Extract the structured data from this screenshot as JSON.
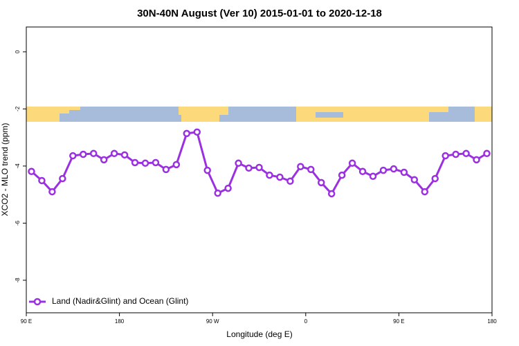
{
  "chart_data": {
    "type": "line",
    "title": "30N-40N August (Ver 10)   2015-01-01 to 2020-12-18",
    "x_label": "Longitude (deg E)",
    "y_label": "XCO2 - MLO trend (ppm)",
    "xlim": [
      90,
      540
    ],
    "ylim": [
      -9.14,
      0.87
    ],
    "xticks": [
      {
        "value": 90,
        "label": "90 E"
      },
      180,
      {
        "value": 270,
        "label": "90 W"
      },
      {
        "value": 360,
        "label": "0"
      },
      {
        "value": 450,
        "label": "90 E"
      },
      {
        "value": 540,
        "label": "180"
      }
    ],
    "yticks": [
      0,
      -2,
      -4,
      -6,
      -8
    ],
    "legend": "bottom-left",
    "x": [
      95,
      105,
      115,
      125,
      135,
      145,
      155,
      165,
      175,
      185,
      195,
      205,
      215,
      225,
      235,
      245,
      255,
      265,
      275,
      285,
      295,
      305,
      315,
      325,
      335,
      345,
      355,
      365,
      375,
      385,
      395,
      405,
      415,
      425,
      435,
      445,
      455,
      465,
      475,
      485,
      495,
      505,
      515,
      525,
      535
    ],
    "series": [
      {
        "name": "Land (Nadir&Glint) and Ocean (Glint)",
        "color": "#9b30e0",
        "values": [
          -4.19,
          -4.51,
          -4.9,
          -4.44,
          -3.64,
          -3.59,
          -3.56,
          -3.78,
          -3.56,
          -3.61,
          -3.88,
          -3.9,
          -3.88,
          -4.12,
          -3.95,
          -2.86,
          -2.81,
          -4.15,
          -4.95,
          -4.78,
          -3.9,
          -4.07,
          -4.05,
          -4.32,
          -4.39,
          -4.53,
          -4.02,
          -4.12,
          -4.58,
          -4.97,
          -4.32,
          -3.9,
          -4.19,
          -4.36,
          -4.15,
          -4.1,
          -4.22,
          -4.48,
          -4.9,
          -4.44,
          -3.64,
          -3.59,
          -3.56,
          -3.78,
          -3.56
        ]
      }
    ]
  }
}
